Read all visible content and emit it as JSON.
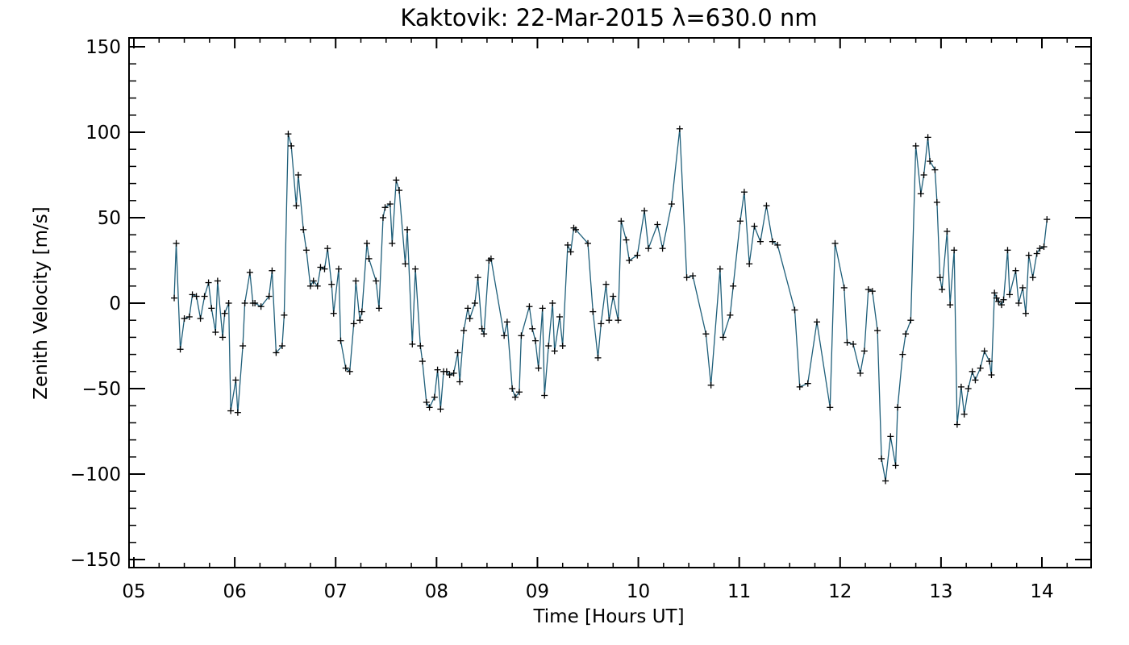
{
  "chart_data": {
    "type": "line",
    "title": "Kaktovik: 22-Mar-2015 λ=630.0 nm",
    "xlabel": "Time [Hours UT]",
    "ylabel": "Zenith Velocity [m/s]",
    "xlim": [
      5,
      14.5
    ],
    "ylim": [
      -150,
      150
    ],
    "x_tick_labels": [
      "05",
      "06",
      "07",
      "08",
      "09",
      "10",
      "11",
      "12",
      "13",
      "14"
    ],
    "y_tick_labels": [
      "−150",
      "−100",
      "−50",
      "0",
      "50",
      "100",
      "150"
    ],
    "grid": false,
    "line_color": "#1f5f7a",
    "marker": "plus",
    "series": [
      {
        "x": [
          5.4,
          5.42,
          5.46,
          5.5,
          5.55,
          5.58,
          5.62,
          5.66,
          5.7,
          5.74,
          5.77,
          5.81,
          5.83,
          5.88,
          5.9,
          5.94,
          5.96,
          6.01,
          6.03,
          6.08,
          6.1,
          6.15,
          6.18,
          6.2,
          6.26,
          6.34,
          6.37,
          6.41,
          6.47,
          6.49,
          6.53,
          6.56,
          6.61,
          6.63,
          6.68,
          6.71,
          6.75,
          6.78,
          6.82,
          6.85,
          6.89,
          6.92,
          6.96,
          6.98,
          7.03,
          7.05,
          7.1,
          7.14,
          7.18,
          7.2,
          7.24,
          7.26,
          7.31,
          7.33,
          7.4,
          7.43,
          7.47,
          7.49,
          7.54,
          7.56,
          7.6,
          7.63,
          7.69,
          7.71,
          7.76,
          7.79,
          7.84,
          7.86,
          7.9,
          7.93,
          7.98,
          8.01,
          8.04,
          8.07,
          8.1,
          8.13,
          8.17,
          8.21,
          8.23,
          8.27,
          8.31,
          8.33,
          8.38,
          8.41,
          8.45,
          8.47,
          8.52,
          8.54,
          8.67,
          8.7,
          8.75,
          8.78,
          8.82,
          8.84,
          8.92,
          8.95,
          8.98,
          9.01,
          9.05,
          9.07,
          9.11,
          9.15,
          9.17,
          9.22,
          9.25,
          9.3,
          9.33,
          9.36,
          9.38,
          9.5,
          9.55,
          9.6,
          9.63,
          9.68,
          9.71,
          9.75,
          9.8,
          9.83,
          9.88,
          9.91,
          9.99,
          10.06,
          10.1,
          10.19,
          10.24,
          10.33,
          10.41,
          10.48,
          10.54,
          10.67,
          10.72,
          10.81,
          10.84,
          10.91,
          10.94,
          11.01,
          11.05,
          11.1,
          11.15,
          11.21,
          11.27,
          11.33,
          11.38,
          11.55,
          11.6,
          11.68,
          11.77,
          11.9,
          11.95,
          12.04,
          12.07,
          12.13,
          12.2,
          12.24,
          12.28,
          12.32,
          12.37,
          12.41,
          12.45,
          12.5,
          12.55,
          12.57,
          12.62,
          12.65,
          12.7,
          12.75,
          12.8,
          12.83,
          12.87,
          12.89,
          12.94,
          12.96,
          12.99,
          13.01,
          13.06,
          13.09,
          13.13,
          13.16,
          13.2,
          13.23,
          13.27,
          13.31,
          13.34,
          13.39,
          13.43,
          13.48,
          13.5,
          13.53,
          13.55,
          13.57,
          13.6,
          13.62,
          13.66,
          13.68,
          13.74,
          13.77,
          13.81,
          13.84,
          13.87,
          13.91,
          13.95,
          13.98,
          14.02,
          14.05
        ],
        "y": [
          3,
          35,
          -27,
          -9,
          -8,
          5,
          4,
          -9,
          4,
          12,
          -3,
          -17,
          13,
          -20,
          -6,
          0,
          -63,
          -45,
          -64,
          -25,
          0,
          18,
          0,
          0,
          -2,
          4,
          19,
          -29,
          -25,
          -7,
          99,
          92,
          57,
          75,
          43,
          31,
          10,
          13,
          10,
          21,
          20,
          32,
          11,
          -6,
          20,
          -22,
          -38,
          -40,
          -12,
          13,
          -10,
          -5,
          35,
          26,
          13,
          -3,
          50,
          56,
          58,
          35,
          72,
          66,
          23,
          43,
          -24,
          20,
          -25,
          -34,
          -58,
          -61,
          -55,
          -39,
          -62,
          -40,
          -40,
          -42,
          -41,
          -29,
          -46,
          -16,
          -3,
          -9,
          0,
          15,
          -15,
          -18,
          25,
          26,
          -19,
          -11,
          -50,
          -55,
          -52,
          -19,
          -2,
          -15,
          -22,
          -38,
          -3,
          -54,
          -25,
          0,
          -28,
          -8,
          -25,
          34,
          30,
          44,
          43,
          35,
          -5,
          -32,
          -12,
          11,
          -10,
          4,
          -10,
          48,
          37,
          25,
          28,
          54,
          32,
          46,
          32,
          58,
          102,
          15,
          16,
          -18,
          -48,
          20,
          -20,
          -7,
          10,
          48,
          65,
          23,
          45,
          36,
          57,
          36,
          34,
          -4,
          -49,
          -47,
          -11,
          -61,
          35,
          9,
          -23,
          -24,
          -41,
          -28,
          8,
          7,
          -16,
          -91,
          -104,
          -78,
          -95,
          -61,
          -30,
          -18,
          -10,
          92,
          64,
          75,
          97,
          83,
          78,
          59,
          15,
          8,
          42,
          -1,
          31,
          -71,
          -49,
          -65,
          -50,
          -40,
          -45,
          -38,
          -28,
          -34,
          -42,
          6,
          3,
          1,
          -1,
          2,
          31,
          5,
          19,
          0,
          9,
          -6,
          28,
          15,
          29,
          32,
          33,
          49
        ]
      }
    ]
  }
}
